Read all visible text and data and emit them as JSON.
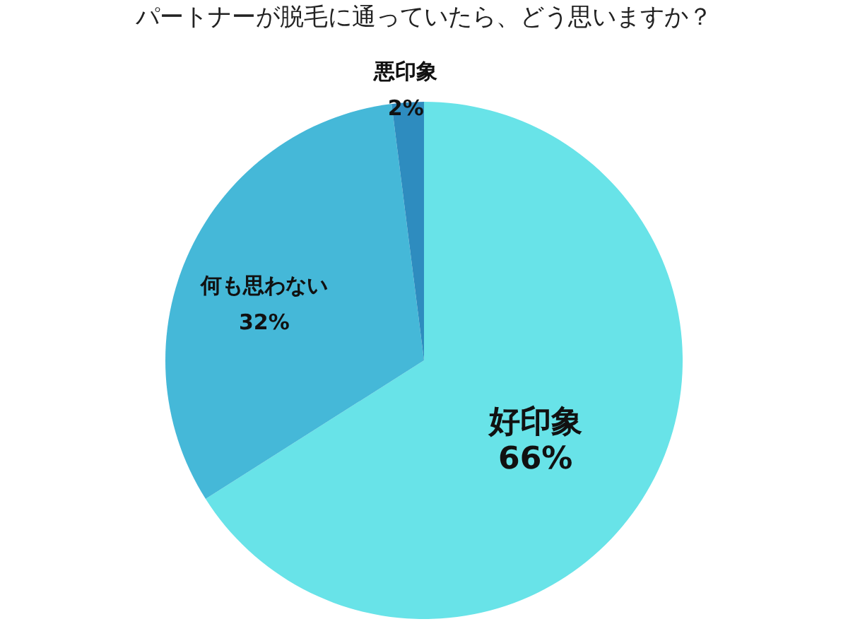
{
  "chart_data": {
    "type": "pie",
    "title": "パートナーが脱毛に通っていたら、どう思いますか？",
    "categories": [
      "好印象",
      "何も思わない",
      "悪印象"
    ],
    "values": [
      66,
      32,
      2
    ],
    "value_labels": [
      "66%",
      "32%",
      "2%"
    ],
    "colors": [
      "#68e3e8",
      "#45b8d8",
      "#2e8cbf"
    ],
    "legend": false
  }
}
